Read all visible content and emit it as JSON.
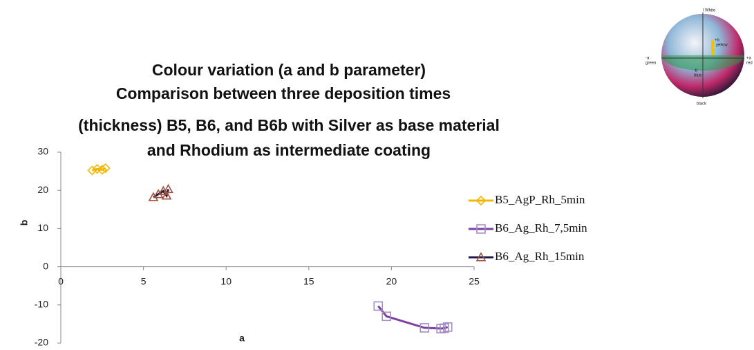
{
  "chart_data": {
    "type": "scatter",
    "title": [
      "Colour variation (a and b parameter)",
      "Comparison between three deposition times",
      "(thickness) B5, B6, and B6b with Silver as base material",
      "and Rhodium as intermediate coating"
    ],
    "xlabel": "a",
    "ylabel": "b",
    "xlim": [
      0,
      25
    ],
    "xticks": [
      0,
      5,
      10,
      15,
      20,
      25
    ],
    "ylim": [
      -20,
      30
    ],
    "yticks": [
      -20,
      -10,
      0,
      10,
      20,
      30
    ],
    "series": [
      {
        "name": "B5_AgP_Rh_5min",
        "color": "#f2b705",
        "marker": "diamond",
        "marker_color": "#f2b705",
        "x": [
          1.9,
          2.2,
          2.5,
          2.7
        ],
        "values": [
          25.2,
          25.6,
          25.4,
          25.8
        ]
      },
      {
        "name": "B6_Ag_Rh_7,5min",
        "color": "#7d3fa3",
        "marker": "square",
        "marker_color": "#a28ec4",
        "x": [
          19.2,
          19.7,
          22.0,
          23.0,
          23.2,
          23.4
        ],
        "values": [
          -10.3,
          -13.0,
          -16.0,
          -16.2,
          -16.1,
          -15.8
        ]
      },
      {
        "name": "B6_Ag_Rh_15min",
        "color": "#1f1a4e",
        "marker": "triangle",
        "marker_color": "#a0503a",
        "x": [
          5.6,
          5.9,
          6.2,
          6.4,
          6.5
        ],
        "values": [
          18.2,
          19.0,
          19.8,
          18.6,
          20.3
        ]
      }
    ],
    "inset_labels": [
      "l White",
      "+b",
      "yellow",
      "-a",
      "green",
      "+a",
      "red",
      "-b",
      "blue",
      "black"
    ]
  }
}
